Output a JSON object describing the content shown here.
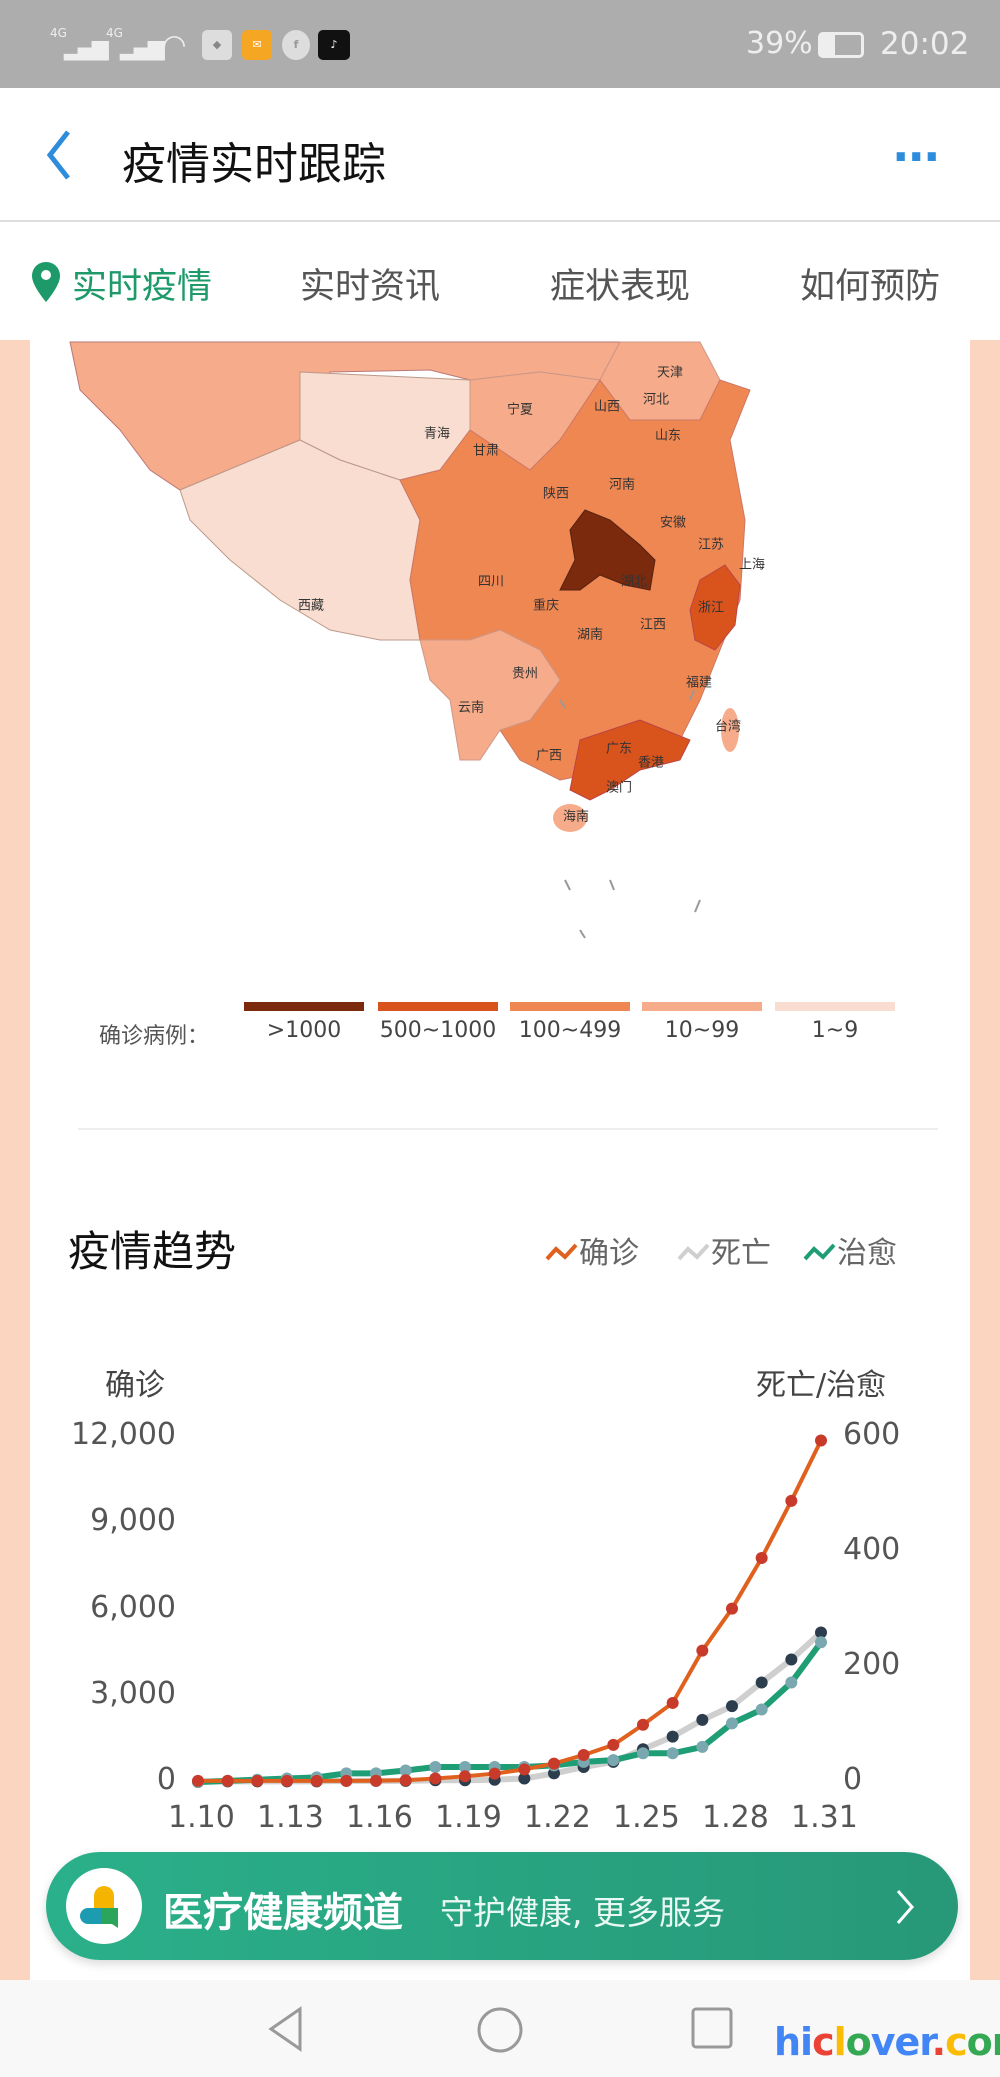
{
  "status_bar": {
    "signal1": "4G",
    "signal2": "4G",
    "battery": "39%",
    "time": "20:02",
    "app_icons": [
      "wifi-icon",
      "app-icon",
      "mail-icon",
      "facebook-icon",
      "tiktok-icon"
    ]
  },
  "header": {
    "title": "疫情实时跟踪",
    "more": "..."
  },
  "tabs": [
    {
      "label": "实时疫情",
      "active": true
    },
    {
      "label": "实时资讯"
    },
    {
      "label": "症状表现"
    },
    {
      "label": "如何预防"
    }
  ],
  "map": {
    "provinces": [
      "天津",
      "河北",
      "山西",
      "宁夏",
      "山东",
      "青海",
      "甘肃",
      "陕西",
      "河南",
      "安徽",
      "江苏",
      "上海",
      "四川",
      "湖北",
      "西藏",
      "重庆",
      "浙江",
      "湖南",
      "江西",
      "贵州",
      "福建",
      "云南",
      "台湾",
      "广西",
      "广东",
      "香港",
      "澳门",
      "海南"
    ],
    "legend_title": "确诊病例：",
    "legend": [
      {
        "label": ">1000",
        "color": "#7b2a0d"
      },
      {
        "label": "500~1000",
        "color": "#d9531d"
      },
      {
        "label": "100~499",
        "color": "#ef8753"
      },
      {
        "label": "10~99",
        "color": "#f6ab8a"
      },
      {
        "label": "1~9",
        "color": "#f8ddd0"
      }
    ]
  },
  "trend": {
    "title": "疫情趋势",
    "legend": [
      {
        "label": "确诊",
        "color": "#e0601e"
      },
      {
        "label": "死亡",
        "color": "#cfcfcf"
      },
      {
        "label": "治愈",
        "color": "#1f9e76"
      }
    ]
  },
  "chart_data": {
    "type": "line",
    "ylabel_left": "确诊",
    "ylabel_right": "死亡/治愈",
    "ylim_left": [
      0,
      12000
    ],
    "ylim_right": [
      0,
      600
    ],
    "yticks_left": [
      "12,000",
      "9,000",
      "6,000",
      "3,000",
      "0"
    ],
    "yticks_right": [
      "600",
      "400",
      "200",
      "0"
    ],
    "xtick_labels": [
      "1.10",
      "1.13",
      "1.16",
      "1.19",
      "1.22",
      "1.25",
      "1.28",
      "1.31"
    ],
    "x": [
      "1.10",
      "1.11",
      "1.12",
      "1.13",
      "1.14",
      "1.15",
      "1.16",
      "1.17",
      "1.18",
      "1.19",
      "1.20",
      "1.21",
      "1.22",
      "1.23",
      "1.24",
      "1.25",
      "1.26",
      "1.27",
      "1.28",
      "1.29",
      "1.30",
      "1.31"
    ],
    "series": [
      {
        "name": "确诊",
        "axis": "left",
        "color": "#e0601e",
        "values": [
          41,
          41,
          41,
          41,
          41,
          41,
          45,
          62,
          121,
          198,
          291,
          440,
          640,
          940,
          1290,
          1990,
          2750,
          4570,
          6030,
          7790,
          9780,
          11880
        ]
      },
      {
        "name": "死亡",
        "axis": "right",
        "color": "#cfcfcf",
        "values": [
          0,
          1,
          1,
          1,
          1,
          2,
          2,
          2,
          3,
          3,
          4,
          6,
          15,
          26,
          35,
          57,
          79,
          108,
          132,
          173,
          213,
          260
        ]
      },
      {
        "name": "治愈",
        "axis": "right",
        "color": "#1f9e76",
        "values": [
          0,
          2,
          4,
          6,
          8,
          15,
          15,
          20,
          26,
          26,
          26,
          26,
          29,
          35,
          38,
          50,
          50,
          61,
          102,
          126,
          173,
          243
        ]
      }
    ],
    "grid": false
  },
  "banner": {
    "title": "医疗健康频道",
    "subtitle": "守护健康, 更多服务"
  },
  "watermark": "hiclover.com"
}
